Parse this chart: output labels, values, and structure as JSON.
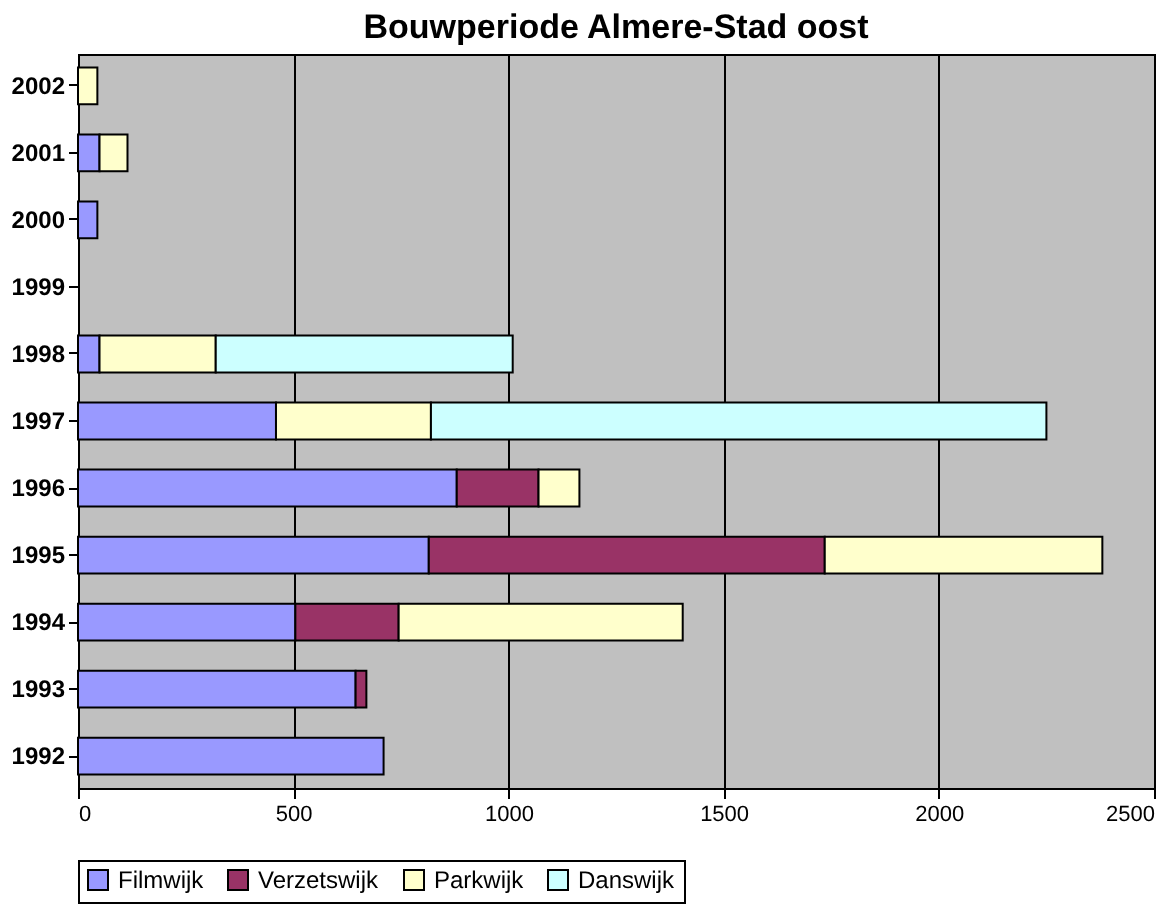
{
  "chart_data": {
    "type": "bar",
    "title": "Bouwperiode Almere-Stad oost",
    "orientation": "horizontal",
    "stacked": true,
    "categories": [
      "2002",
      "2001",
      "2000",
      "1999",
      "1998",
      "1997",
      "1996",
      "1995",
      "1994",
      "1993",
      "1992"
    ],
    "series": [
      {
        "name": "Filmwijk",
        "color": "#9999ff",
        "values": [
          null,
          50,
          45,
          null,
          50,
          460,
          880,
          815,
          505,
          645,
          710
        ]
      },
      {
        "name": "Verzetswijk",
        "color": "#993366",
        "values": [
          null,
          null,
          null,
          null,
          null,
          null,
          190,
          920,
          240,
          25,
          null
        ]
      },
      {
        "name": "Parkwijk",
        "color": "#ffffcc",
        "values": [
          45,
          65,
          null,
          null,
          270,
          360,
          95,
          645,
          660,
          null,
          null
        ]
      },
      {
        "name": "Danswijk",
        "color": "#ccffff",
        "values": [
          null,
          null,
          null,
          null,
          690,
          1430,
          null,
          null,
          null,
          null,
          null
        ]
      }
    ],
    "xlim": [
      0,
      2500
    ],
    "xticks": [
      0,
      500,
      1000,
      1500,
      2000,
      2500
    ],
    "grid": "x",
    "legend": "bottom"
  }
}
